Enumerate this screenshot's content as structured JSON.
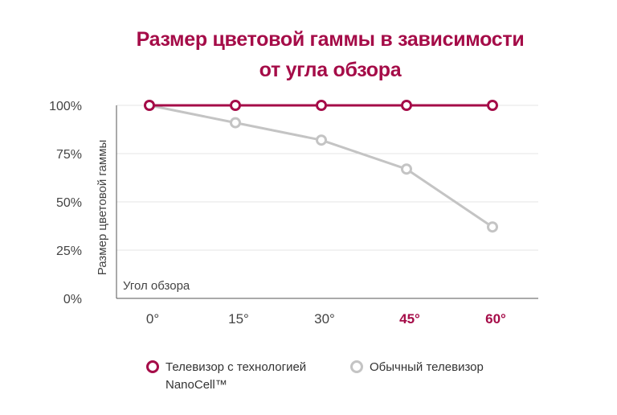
{
  "title_line1": "Размер цветовой гаммы в зависимости",
  "title_line2": "от угла обзора",
  "chart_data": {
    "type": "line",
    "categories": [
      "0°",
      "15°",
      "30°",
      "45°",
      "60°"
    ],
    "highlighted_categories": [
      "45°",
      "60°"
    ],
    "y_ticks": [
      "0%",
      "25%",
      "50%",
      "75%",
      "100%"
    ],
    "ylim": [
      0,
      100
    ],
    "ylabel": "Размер цветовой гаммы",
    "xlabel": "Угол обзора",
    "grid": true,
    "legend_position": "bottom",
    "series": [
      {
        "name": "Телевизор с технологией NanoCell™",
        "color": "#a50c48",
        "values": [
          100,
          100,
          100,
          100,
          100
        ]
      },
      {
        "name": "Обычный телевизор",
        "color": "#c4c4c4",
        "values": [
          100,
          91,
          82,
          67,
          37
        ]
      }
    ]
  },
  "legend": {
    "nanocell": "Телевизор с технологией NanoCell™",
    "regular": "Обычный телевизор"
  }
}
